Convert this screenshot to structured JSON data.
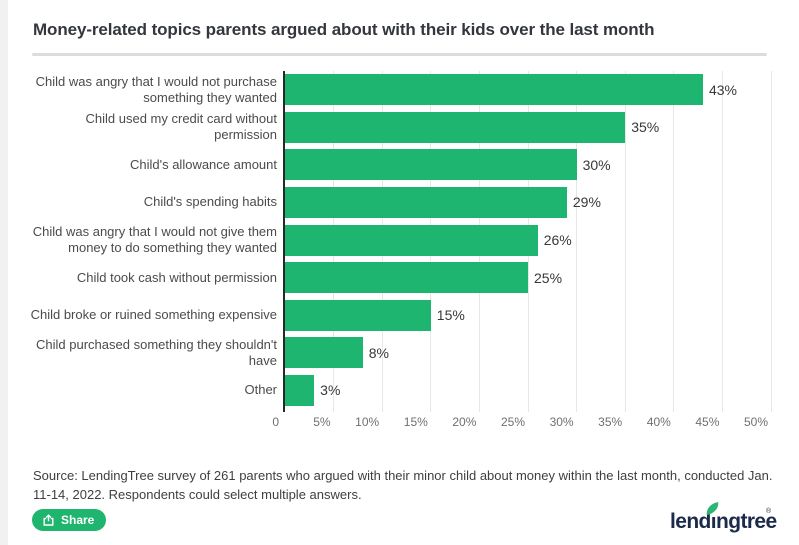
{
  "page": {
    "background": "#ffffff"
  },
  "header": {
    "title": "Money-related topics parents argued about with their kids over the last month"
  },
  "chart_data": {
    "type": "bar",
    "orientation": "horizontal",
    "title": "Money-related topics parents argued about with their kids over the last month",
    "categories": [
      "Child was angry that I would not purchase something they wanted",
      "Child used my credit card without permission",
      "Child's allowance amount",
      "Child's spending habits",
      "Child was angry that I would not give them money to do something they wanted",
      "Child took cash without permission",
      "Child broke or ruined something expensive",
      "Child purchased something they shouldn't have",
      "Other"
    ],
    "values": [
      43,
      35,
      30,
      29,
      26,
      25,
      15,
      8,
      3
    ],
    "value_labels": [
      "43%",
      "35%",
      "30%",
      "29%",
      "26%",
      "25%",
      "15%",
      "8%",
      "3%"
    ],
    "x_tick_values": [
      0,
      5,
      10,
      15,
      20,
      25,
      30,
      35,
      40,
      45,
      50
    ],
    "x_tick_labels": [
      "0",
      "5%",
      "10%",
      "15%",
      "20%",
      "25%",
      "30%",
      "35%",
      "40%",
      "45%",
      "50%"
    ],
    "xlim": [
      0,
      50
    ],
    "grid": true,
    "legend": false,
    "bar_color": "#1db56f"
  },
  "source": {
    "text": "Source: LendingTree survey of 261 parents who argued with their minor child about money within the last month, conducted Jan. 11-14, 2022. Respondents could select multiple answers."
  },
  "footer": {
    "share_label": "Share",
    "logo_text": "lendingtree",
    "logo_mark": "®"
  },
  "colors": {
    "green": "#1db56f",
    "logo_navy": "#1b2b49",
    "axis": "#26282b",
    "gridline": "#e7e7e7",
    "divider": "#dcdcdc"
  }
}
